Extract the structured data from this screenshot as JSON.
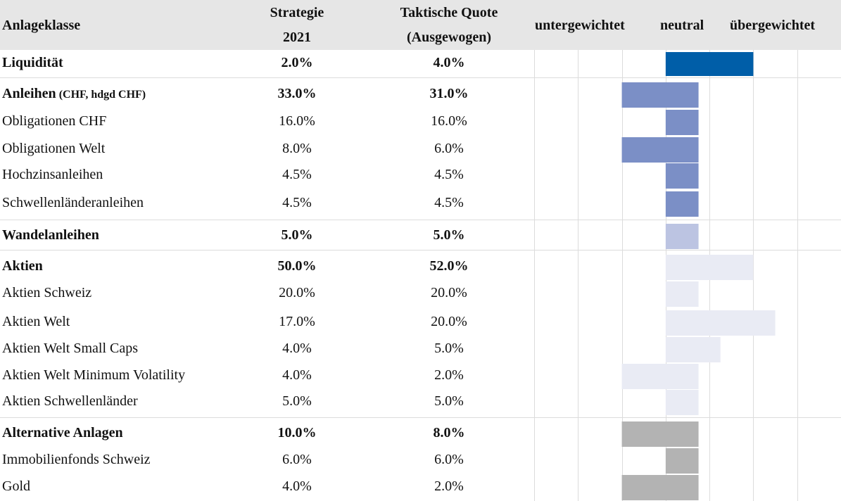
{
  "header": {
    "col1": "Anlageklasse",
    "col2_line1": "Strategie",
    "col2_line2": "2021",
    "col3_line1": "Taktische Quote",
    "col3_line2": "(Ausgewogen)",
    "scale_under": "untergewichtet",
    "scale_neutral": "neutral",
    "scale_over": "übergewichtet"
  },
  "rows": [
    {
      "label": "Liquidität",
      "note": "",
      "strategy": "2.0%",
      "tactical": "4.0%",
      "bold": true
    },
    {
      "label": "Anleihen",
      "note": "(CHF, hdgd CHF)",
      "strategy": "33.0%",
      "tactical": "31.0%",
      "bold": true
    },
    {
      "label": "Obligationen CHF",
      "note": "",
      "strategy": "16.0%",
      "tactical": "16.0%",
      "bold": false
    },
    {
      "label": "Obligationen Welt",
      "note": "",
      "strategy": "8.0%",
      "tactical": "6.0%",
      "bold": false
    },
    {
      "label": "Hochzinsanleihen",
      "note": "",
      "strategy": "4.5%",
      "tactical": "4.5%",
      "bold": false
    },
    {
      "label": "Schwellenländeranleihen",
      "note": "",
      "strategy": "4.5%",
      "tactical": "4.5%",
      "bold": false
    },
    {
      "label": "Wandelanleihen",
      "note": "",
      "strategy": "5.0%",
      "tactical": "5.0%",
      "bold": true
    },
    {
      "label": "Aktien",
      "note": "",
      "strategy": "50.0%",
      "tactical": "52.0%",
      "bold": true
    },
    {
      "label": "Aktien Schweiz",
      "note": "",
      "strategy": "20.0%",
      "tactical": "20.0%",
      "bold": false
    },
    {
      "label": "Aktien Welt",
      "note": "",
      "strategy": "17.0%",
      "tactical": "20.0%",
      "bold": false
    },
    {
      "label": "Aktien Welt Small Caps",
      "note": "",
      "strategy": "4.0%",
      "tactical": "5.0%",
      "bold": false
    },
    {
      "label": "Aktien Welt Minimum Volatility",
      "note": "",
      "strategy": "4.0%",
      "tactical": "2.0%",
      "bold": false
    },
    {
      "label": "Aktien Schwellenländer",
      "note": "",
      "strategy": "5.0%",
      "tactical": "5.0%",
      "bold": false
    },
    {
      "label": "Alternative Anlagen",
      "note": "",
      "strategy": "10.0%",
      "tactical": "8.0%",
      "bold": true
    },
    {
      "label": "Immobilienfonds Schweiz",
      "note": "",
      "strategy": "6.0%",
      "tactical": "6.0%",
      "bold": false
    },
    {
      "label": "Gold",
      "note": "",
      "strategy": "4.0%",
      "tactical": "2.0%",
      "bold": false
    }
  ],
  "chart_data": {
    "type": "bar",
    "orientation": "horizontal",
    "categories": [
      "Liquidität",
      "Anleihen",
      "Obligationen CHF",
      "Obligationen Welt",
      "Hochzinsanleihen",
      "Schwellenländeranleihen",
      "Wandelanleihen",
      "Aktien",
      "Aktien Schweiz",
      "Aktien Welt",
      "Aktien Welt Small Caps",
      "Aktien Welt Minimum Volatility",
      "Aktien Schwellenländer",
      "Alternative Anlagen",
      "Immobilienfonds Schweiz",
      "Gold"
    ],
    "bar_ranges": [
      [
        0,
        2
      ],
      [
        -1,
        0.75
      ],
      [
        0,
        0.75
      ],
      [
        -1,
        0.75
      ],
      [
        0,
        0.75
      ],
      [
        0,
        0.75
      ],
      [
        0,
        0.75
      ],
      [
        0,
        2
      ],
      [
        0,
        0.75
      ],
      [
        0,
        2.5
      ],
      [
        0,
        1.25
      ],
      [
        -1,
        0.75
      ],
      [
        0,
        0.75
      ],
      [
        -1,
        0.75
      ],
      [
        0,
        0.75
      ],
      [
        -1,
        0.75
      ]
    ],
    "colors": [
      "#005ea8",
      "#7b8fc6",
      "#7b8fc6",
      "#7b8fc6",
      "#7b8fc6",
      "#7b8fc6",
      "#bcc4e2",
      "#e9ebf4",
      "#e9ebf4",
      "#e9ebf4",
      "#e9ebf4",
      "#e9ebf4",
      "#e9ebf4",
      "#b3b3b3",
      "#b3b3b3",
      "#b3b3b3"
    ],
    "xlim": [
      -3,
      4
    ],
    "axis_labels": [
      "untergewichtet",
      "neutral",
      "übergewichtet"
    ],
    "grid": true
  }
}
